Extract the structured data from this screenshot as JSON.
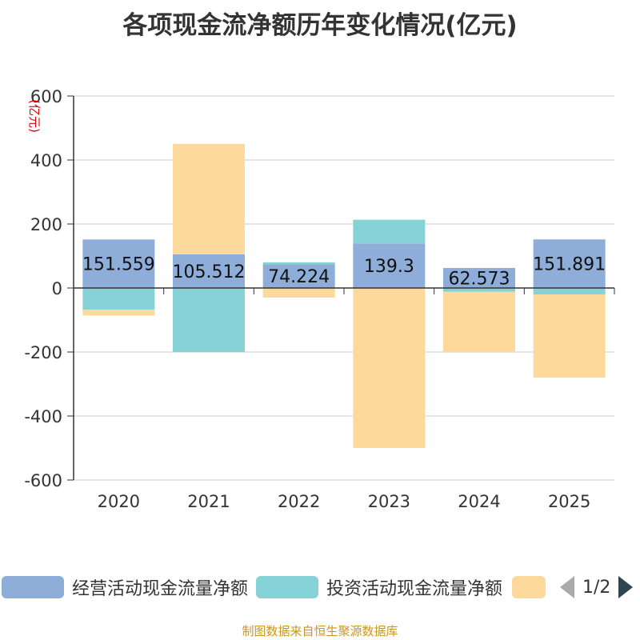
{
  "title": "各项现金流净额历年变化情况(亿元)",
  "source": "制图数据来自恒生聚源数据库",
  "legend_page": "1/2",
  "colors": {
    "operating": "#8eadd9",
    "investing": "#86d3d7",
    "financing": "#fdd99b"
  },
  "chart_data": {
    "type": "bar",
    "stacked": true,
    "title": "各项现金流净额历年变化情况(亿元)",
    "ylabel": "(亿元)",
    "ylim": [
      -600,
      600
    ],
    "yticks": [
      600,
      400,
      200,
      0,
      -200,
      -400,
      -600
    ],
    "grid": true,
    "legend_position": "bottom",
    "categories": [
      "2020",
      "2021",
      "2022",
      "2023",
      "2024",
      "2025"
    ],
    "series": [
      {
        "name": "经营活动现金流量净额",
        "values": [
          151.559,
          105.512,
          74.224,
          139.3,
          62.573,
          151.891
        ],
        "labels": [
          "151.559",
          "105.512",
          "74.224",
          "139.3",
          "62.573",
          "151.891"
        ]
      },
      {
        "name": "投资活动现金流量净额",
        "values": [
          -68,
          -200,
          6,
          74,
          -12,
          -20
        ]
      },
      {
        "name": "",
        "values": [
          -18,
          345,
          -30,
          -500,
          -188,
          -260
        ]
      }
    ]
  }
}
